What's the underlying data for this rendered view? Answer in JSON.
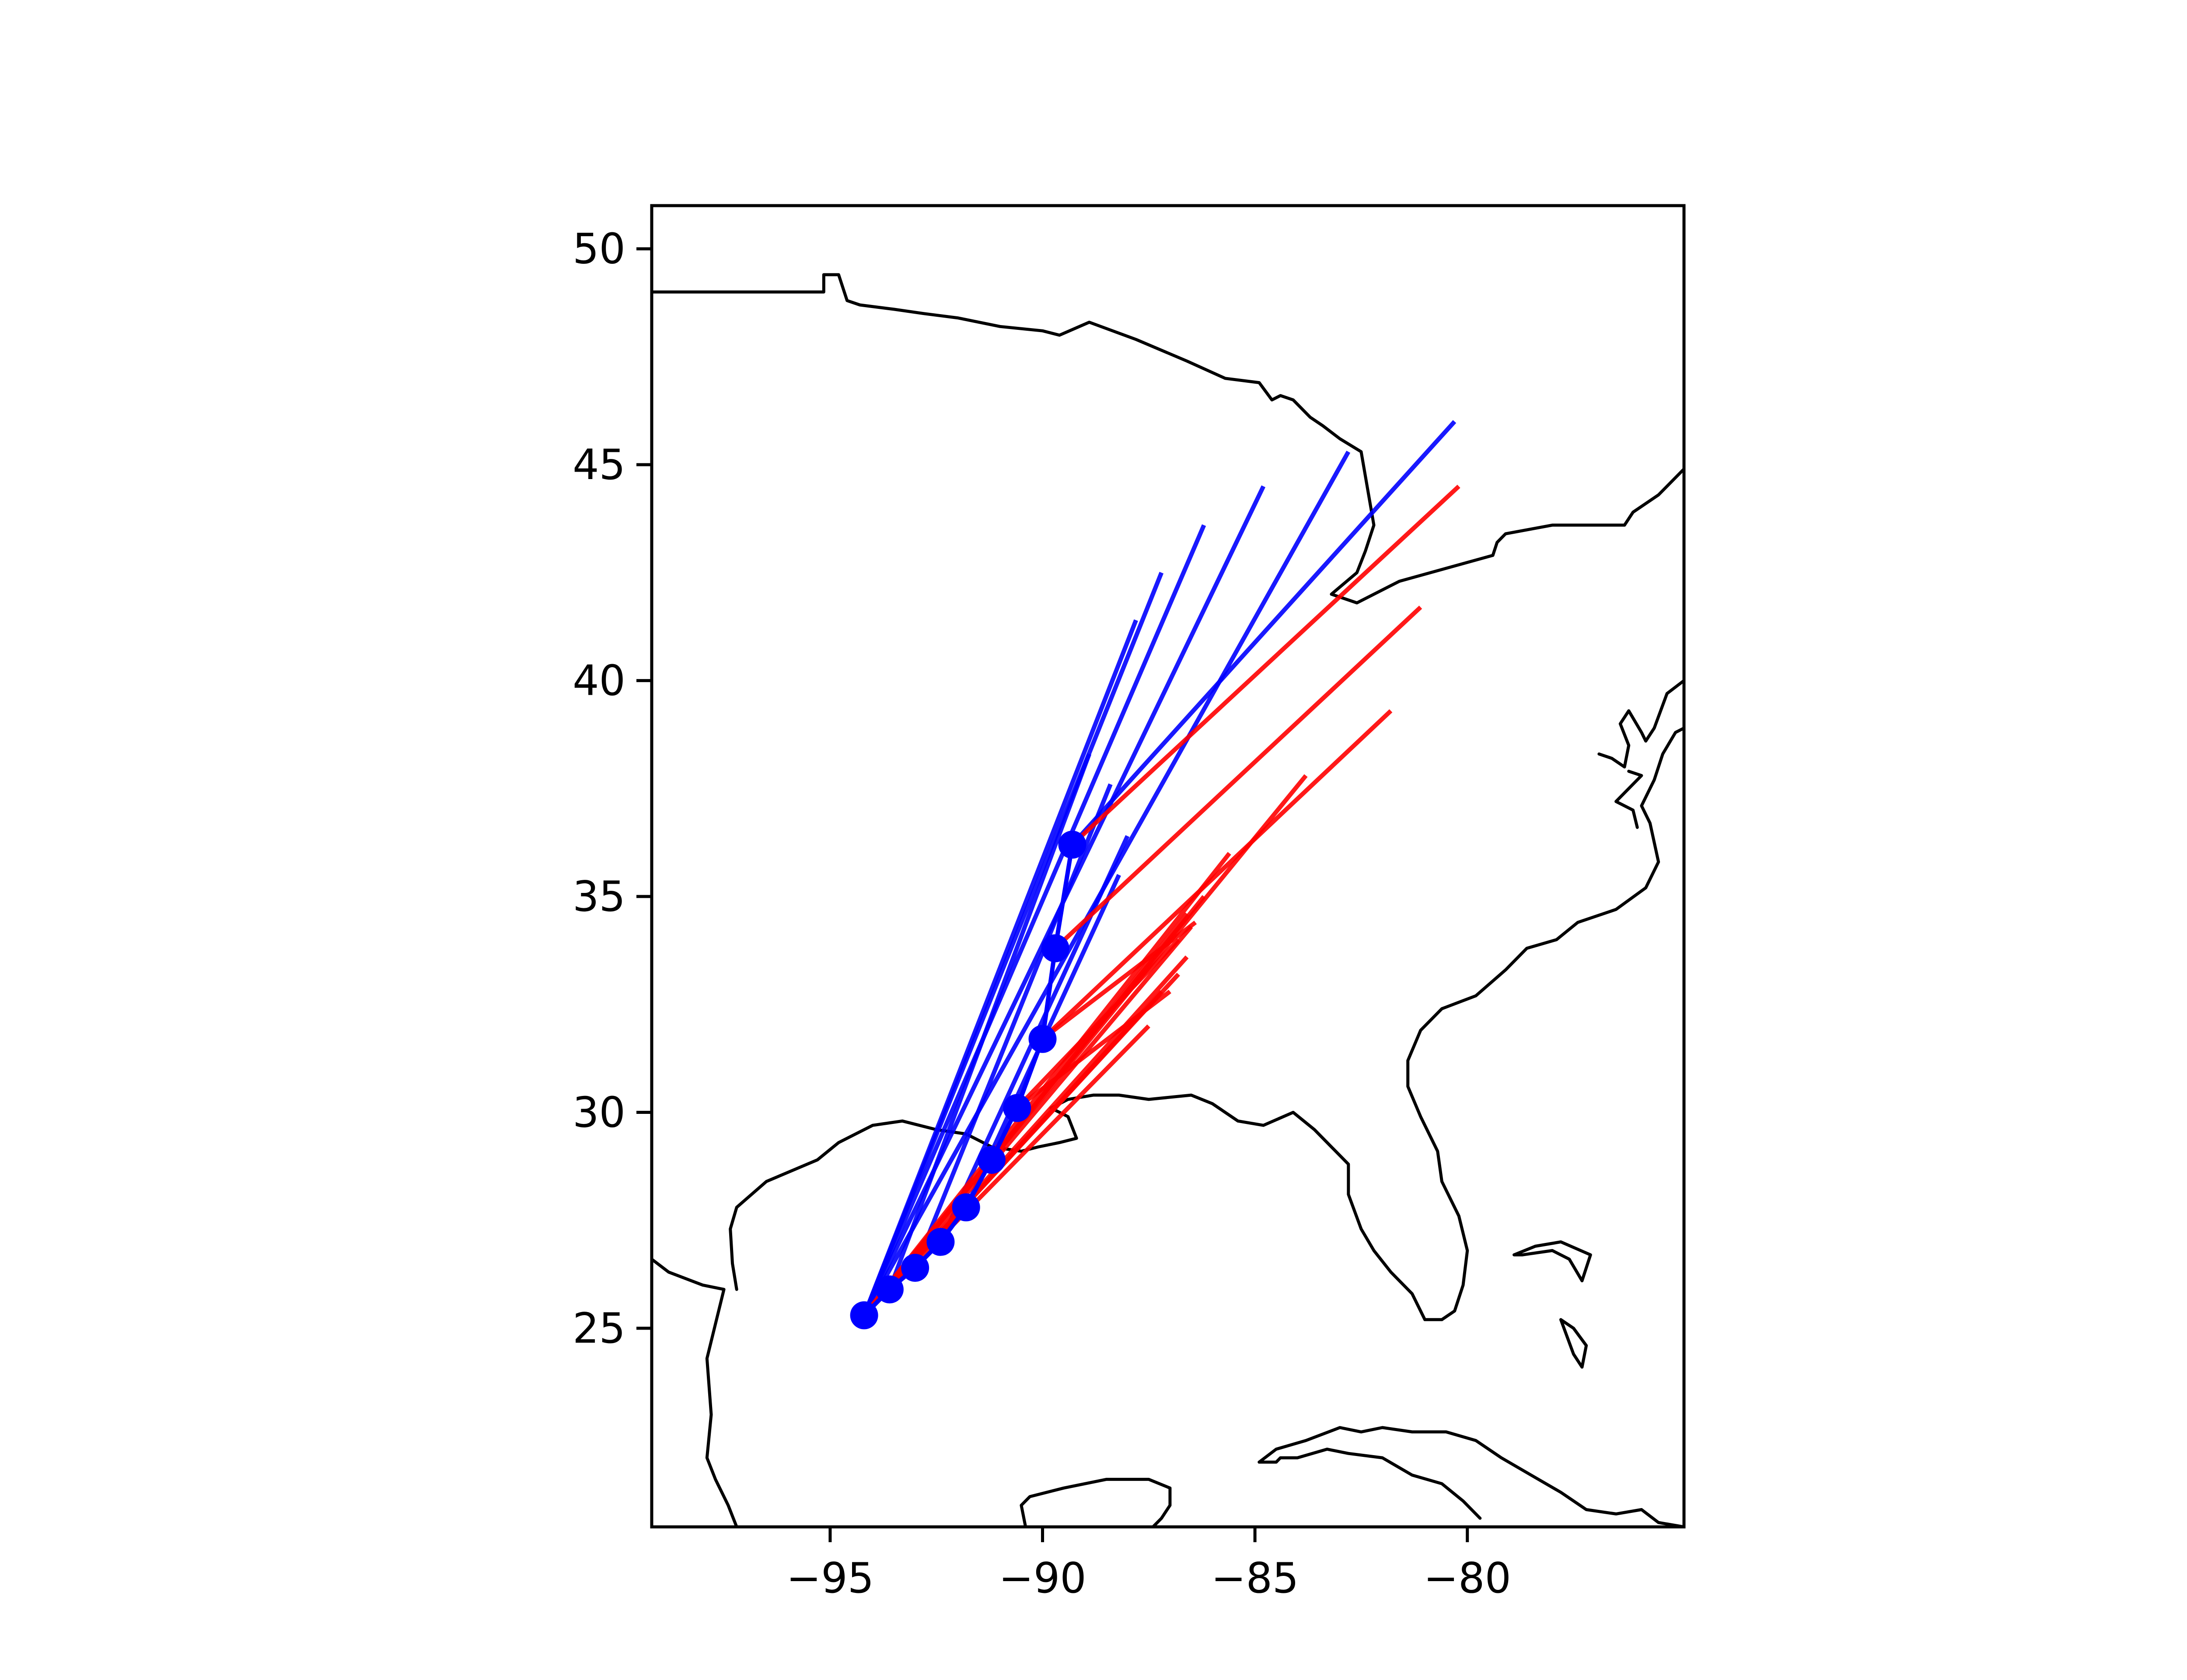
{
  "chart_data": {
    "type": "line",
    "title": "",
    "xlabel": "",
    "ylabel": "",
    "xlim": [
      -99.2,
      -74.9
    ],
    "ylim": [
      20.4,
      51.0
    ],
    "x_ticks": [
      -95,
      -90,
      -85,
      -80
    ],
    "y_ticks": [
      25,
      30,
      35,
      40,
      45,
      50
    ],
    "x_tick_labels": [
      "−95",
      "−90",
      "−85",
      "−80"
    ],
    "y_tick_labels": [
      "25",
      "30",
      "35",
      "40",
      "45",
      "50"
    ],
    "grid": false,
    "legend": "none",
    "colors": {
      "track": "#0000ff",
      "forecast": "#ff0000",
      "coast": "#000000"
    },
    "track_points": [
      {
        "lon": -94.2,
        "lat": 25.3
      },
      {
        "lon": -93.6,
        "lat": 25.9
      },
      {
        "lon": -93.0,
        "lat": 26.4
      },
      {
        "lon": -92.4,
        "lat": 27.0
      },
      {
        "lon": -91.8,
        "lat": 27.8
      },
      {
        "lon": -91.2,
        "lat": 28.9
      },
      {
        "lon": -90.6,
        "lat": 30.1
      },
      {
        "lon": -90.0,
        "lat": 31.7
      },
      {
        "lon": -89.7,
        "lat": 33.8
      },
      {
        "lon": -89.3,
        "lat": 36.2
      }
    ],
    "blue_tracks": [
      {
        "start": [
          -94.2,
          25.3
        ],
        "end": [
          -87.8,
          41.4
        ]
      },
      {
        "start": [
          -94.2,
          25.3
        ],
        "end": [
          -87.2,
          42.5
        ]
      },
      {
        "start": [
          -94.2,
          25.3
        ],
        "end": [
          -86.2,
          43.6
        ]
      },
      {
        "start": [
          -94.2,
          25.3
        ],
        "end": [
          -84.8,
          44.5
        ]
      },
      {
        "start": [
          -94.2,
          25.3
        ],
        "end": [
          -82.8,
          45.3
        ]
      },
      {
        "start": [
          -89.3,
          36.2
        ],
        "end": [
          -80.3,
          46.0
        ]
      },
      {
        "start": [
          -93.6,
          25.9
        ],
        "end": [
          -88.9,
          38.3
        ]
      },
      {
        "start": [
          -93.0,
          26.4
        ],
        "end": [
          -88.4,
          37.6
        ]
      },
      {
        "start": [
          -92.4,
          27.0
        ],
        "end": [
          -88.0,
          36.4
        ]
      },
      {
        "start": [
          -91.8,
          27.8
        ],
        "end": [
          -88.2,
          35.5
        ]
      }
    ],
    "red_tracks": [
      {
        "start": [
          -94.2,
          25.3
        ],
        "end": [
          -86.6,
          33.6
        ]
      },
      {
        "start": [
          -94.2,
          25.3
        ],
        "end": [
          -86.8,
          33.2
        ]
      },
      {
        "start": [
          -94.2,
          25.3
        ],
        "end": [
          -87.2,
          32.8
        ]
      },
      {
        "start": [
          -94.2,
          25.3
        ],
        "end": [
          -87.5,
          32.0
        ]
      },
      {
        "start": [
          -94.2,
          25.3
        ],
        "end": [
          -86.5,
          34.3
        ]
      },
      {
        "start": [
          -94.2,
          25.3
        ],
        "end": [
          -86.2,
          35.0
        ]
      },
      {
        "start": [
          -94.2,
          25.3
        ],
        "end": [
          -85.6,
          36.0
        ]
      },
      {
        "start": [
          -94.2,
          25.3
        ],
        "end": [
          -83.8,
          37.8
        ]
      },
      {
        "start": [
          -90.0,
          31.7
        ],
        "end": [
          -81.8,
          39.3
        ]
      },
      {
        "start": [
          -89.7,
          33.8
        ],
        "end": [
          -81.1,
          41.7
        ]
      },
      {
        "start": [
          -89.3,
          36.2
        ],
        "end": [
          -80.2,
          44.5
        ]
      },
      {
        "start": [
          -90.6,
          30.1
        ],
        "end": [
          -86.8,
          34.0
        ]
      },
      {
        "start": [
          -91.2,
          28.9
        ],
        "end": [
          -86.6,
          34.6
        ]
      },
      {
        "start": [
          -90.6,
          30.1
        ],
        "end": [
          -87.0,
          32.8
        ]
      },
      {
        "start": [
          -90.0,
          31.7
        ],
        "end": [
          -86.4,
          34.4
        ]
      }
    ],
    "coastlines": [
      [
        [
          -99.2,
          49.0
        ],
        [
          -95.15,
          49.0
        ],
        [
          -95.15,
          49.4
        ],
        [
          -94.8,
          49.4
        ],
        [
          -94.6,
          48.8
        ],
        [
          -94.3,
          48.7
        ],
        [
          -93.5,
          48.6
        ],
        [
          -92.8,
          48.5
        ],
        [
          -92.0,
          48.4
        ],
        [
          -91.0,
          48.2
        ],
        [
          -90.0,
          48.1
        ],
        [
          -89.6,
          48.0
        ],
        [
          -88.9,
          48.3
        ],
        [
          -87.8,
          47.9
        ],
        [
          -86.6,
          47.4
        ],
        [
          -85.7,
          47.0
        ],
        [
          -84.9,
          46.9
        ],
        [
          -84.6,
          46.5
        ],
        [
          -84.4,
          46.6
        ],
        [
          -84.1,
          46.5
        ],
        [
          -83.7,
          46.1
        ],
        [
          -83.4,
          45.9
        ],
        [
          -83.0,
          45.6
        ],
        [
          -82.5,
          45.3
        ],
        [
          -82.2,
          43.6
        ],
        [
          -82.4,
          43.0
        ],
        [
          -82.6,
          42.5
        ],
        [
          -83.2,
          42.0
        ],
        [
          -82.6,
          41.8
        ],
        [
          -81.6,
          42.3
        ],
        [
          -80.5,
          42.6
        ],
        [
          -79.4,
          42.9
        ],
        [
          -79.3,
          43.2
        ],
        [
          -79.1,
          43.4
        ],
        [
          -78.0,
          43.6
        ],
        [
          -76.3,
          43.6
        ],
        [
          -76.1,
          43.9
        ],
        [
          -75.5,
          44.3
        ],
        [
          -74.9,
          44.9
        ]
      ],
      [
        [
          -99.2,
          26.6
        ],
        [
          -98.8,
          26.3
        ],
        [
          -98.0,
          26.0
        ],
        [
          -97.5,
          25.9
        ],
        [
          -97.7,
          25.1
        ],
        [
          -97.9,
          24.3
        ],
        [
          -97.8,
          23.0
        ],
        [
          -97.9,
          22.0
        ],
        [
          -97.7,
          21.5
        ],
        [
          -97.4,
          20.9
        ],
        [
          -97.2,
          20.4
        ]
      ],
      [
        [
          -97.2,
          25.9
        ],
        [
          -97.3,
          26.5
        ],
        [
          -97.35,
          27.3
        ],
        [
          -97.2,
          27.8
        ],
        [
          -96.5,
          28.4
        ],
        [
          -95.3,
          28.9
        ],
        [
          -94.8,
          29.3
        ],
        [
          -94.0,
          29.7
        ],
        [
          -93.3,
          29.8
        ],
        [
          -92.5,
          29.6
        ],
        [
          -91.8,
          29.5
        ],
        [
          -91.2,
          29.2
        ],
        [
          -90.5,
          29.1
        ],
        [
          -90.1,
          29.2
        ],
        [
          -89.6,
          29.3
        ],
        [
          -89.2,
          29.4
        ],
        [
          -89.4,
          29.9
        ],
        [
          -89.8,
          30.1
        ],
        [
          -89.4,
          30.3
        ],
        [
          -88.8,
          30.4
        ],
        [
          -88.2,
          30.4
        ],
        [
          -87.5,
          30.3
        ],
        [
          -86.5,
          30.4
        ],
        [
          -86.0,
          30.2
        ],
        [
          -85.4,
          29.8
        ],
        [
          -84.8,
          29.7
        ],
        [
          -84.1,
          30.0
        ],
        [
          -83.6,
          29.6
        ],
        [
          -83.2,
          29.2
        ],
        [
          -82.8,
          28.8
        ],
        [
          -82.8,
          28.1
        ],
        [
          -82.5,
          27.3
        ],
        [
          -82.2,
          26.8
        ],
        [
          -81.8,
          26.3
        ],
        [
          -81.3,
          25.8
        ],
        [
          -81.0,
          25.2
        ],
        [
          -80.6,
          25.2
        ],
        [
          -80.3,
          25.4
        ],
        [
          -80.1,
          26.0
        ],
        [
          -80.0,
          26.8
        ],
        [
          -80.2,
          27.6
        ],
        [
          -80.6,
          28.4
        ],
        [
          -80.7,
          29.1
        ],
        [
          -81.1,
          29.9
        ],
        [
          -81.4,
          30.6
        ],
        [
          -81.4,
          31.2
        ],
        [
          -81.1,
          31.9
        ],
        [
          -80.6,
          32.4
        ],
        [
          -79.8,
          32.7
        ],
        [
          -79.1,
          33.3
        ],
        [
          -78.6,
          33.8
        ],
        [
          -77.9,
          34.0
        ],
        [
          -77.4,
          34.4
        ],
        [
          -76.5,
          34.7
        ],
        [
          -75.8,
          35.2
        ],
        [
          -75.5,
          35.8
        ],
        [
          -75.7,
          36.7
        ],
        [
          -75.9,
          37.1
        ],
        [
          -75.6,
          37.7
        ],
        [
          -75.4,
          38.3
        ],
        [
          -75.1,
          38.8
        ],
        [
          -74.9,
          38.9
        ]
      ],
      [
        [
          -84.9,
          21.9
        ],
        [
          -84.5,
          22.2
        ],
        [
          -83.8,
          22.4
        ],
        [
          -83.0,
          22.7
        ],
        [
          -82.5,
          22.6
        ],
        [
          -82.0,
          22.7
        ],
        [
          -81.3,
          22.6
        ],
        [
          -80.5,
          22.6
        ],
        [
          -79.8,
          22.4
        ],
        [
          -79.2,
          22.0
        ],
        [
          -78.5,
          21.6
        ],
        [
          -77.8,
          21.2
        ],
        [
          -77.2,
          20.8
        ],
        [
          -76.5,
          20.7
        ],
        [
          -75.9,
          20.8
        ],
        [
          -75.5,
          20.5
        ],
        [
          -74.9,
          20.4
        ]
      ],
      [
        [
          -84.9,
          21.9
        ],
        [
          -84.5,
          21.9
        ],
        [
          -84.4,
          22.0
        ],
        [
          -84.0,
          22.0
        ],
        [
          -83.3,
          22.2
        ],
        [
          -82.8,
          22.1
        ],
        [
          -82.0,
          22.0
        ],
        [
          -81.3,
          21.6
        ],
        [
          -80.6,
          21.4
        ],
        [
          -80.1,
          21.0
        ],
        [
          -79.7,
          20.6
        ]
      ],
      [
        [
          -90.4,
          20.4
        ],
        [
          -90.5,
          20.9
        ],
        [
          -90.3,
          21.1
        ],
        [
          -89.5,
          21.3
        ],
        [
          -88.5,
          21.5
        ],
        [
          -87.5,
          21.5
        ],
        [
          -87.0,
          21.3
        ],
        [
          -87.0,
          20.9
        ],
        [
          -87.2,
          20.6
        ],
        [
          -87.4,
          20.4
        ]
      ],
      [
        [
          -78.0,
          26.8
        ],
        [
          -78.7,
          26.7
        ],
        [
          -78.9,
          26.7
        ],
        [
          -78.4,
          26.9
        ],
        [
          -77.8,
          27.0
        ],
        [
          -77.1,
          26.7
        ],
        [
          -77.3,
          26.1
        ],
        [
          -77.6,
          26.6
        ],
        [
          -78.0,
          26.8
        ]
      ],
      [
        [
          -77.8,
          25.2
        ],
        [
          -77.5,
          24.4
        ],
        [
          -77.3,
          24.1
        ],
        [
          -77.2,
          24.6
        ],
        [
          -77.5,
          25.0
        ],
        [
          -77.8,
          25.2
        ]
      ],
      [
        [
          -76.9,
          38.3
        ],
        [
          -76.6,
          38.2
        ],
        [
          -76.3,
          38.0
        ],
        [
          -76.2,
          38.5
        ],
        [
          -76.4,
          39.0
        ],
        [
          -76.2,
          39.3
        ],
        [
          -75.9,
          38.8
        ],
        [
          -75.8,
          38.6
        ],
        [
          -75.6,
          38.9
        ],
        [
          -75.3,
          39.7
        ],
        [
          -74.9,
          40.0
        ]
      ],
      [
        [
          -76.0,
          36.6
        ],
        [
          -76.1,
          37.0
        ],
        [
          -76.5,
          37.2
        ],
        [
          -75.9,
          37.8
        ],
        [
          -76.2,
          37.9
        ]
      ]
    ]
  }
}
